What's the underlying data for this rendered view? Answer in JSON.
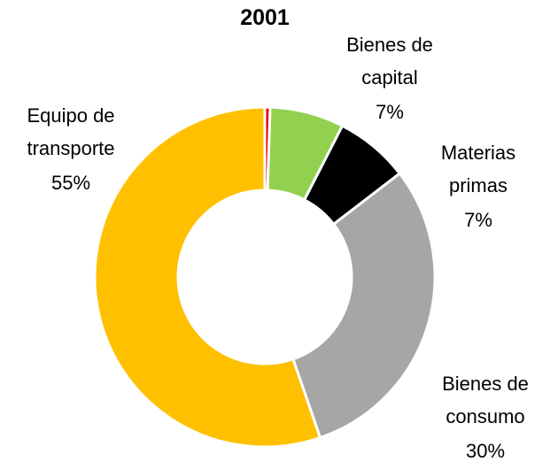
{
  "chart_data": {
    "type": "donut",
    "title": "2001",
    "categories": [
      null,
      "Bienes de capital",
      "Materias primas",
      "Bienes de consumo",
      "Equipo de transporte"
    ],
    "values": [
      0.5,
      7,
      7,
      30,
      55
    ],
    "value_labels": [
      null,
      "7%",
      "7%",
      "30%",
      "55%"
    ],
    "colors": [
      "#e00000",
      "#92d050",
      "#000000",
      "#a6a6a6",
      "#ffc000"
    ]
  }
}
